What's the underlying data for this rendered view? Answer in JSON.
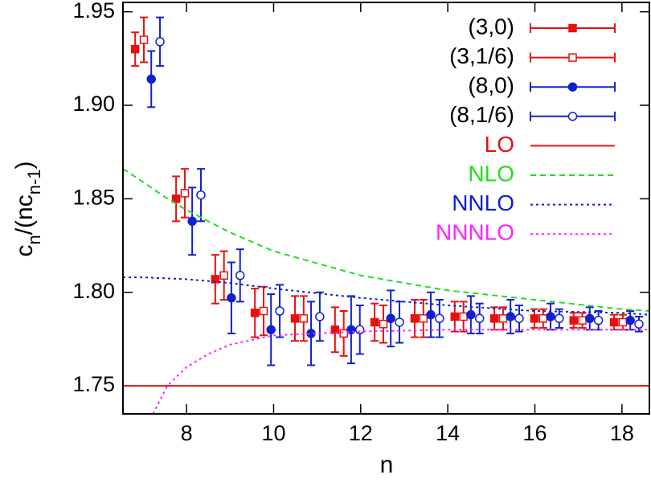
{
  "chart_data": {
    "type": "scatter",
    "xlabel": "n",
    "ylabel": [
      "c",
      "n",
      "/(nc",
      "n-1",
      ")"
    ],
    "xlim": [
      6.54,
      18.63
    ],
    "ylim": [
      1.735,
      1.955
    ],
    "xticks": [
      8,
      10,
      12,
      14,
      16,
      18
    ],
    "yticks": [
      1.75,
      {
        "value": 1.8,
        "label": "1.80"
      },
      1.85,
      {
        "value": 1.9,
        "label": "1.90"
      },
      1.95
    ],
    "legend": "upper right",
    "series": [
      {
        "name": "(3,0)",
        "color": "#e8100f",
        "marker": "square",
        "x": [
          6.82,
          7.76,
          8.66,
          9.57,
          10.49,
          11.41,
          12.32,
          13.24,
          14.16,
          15.07,
          15.99,
          16.89,
          17.82
        ],
        "values": [
          1.93,
          1.85,
          1.807,
          1.789,
          1.786,
          1.78,
          1.784,
          1.786,
          1.787,
          1.786,
          1.786,
          1.785,
          1.784
        ],
        "errors": [
          0.009,
          0.012,
          0.013,
          0.013,
          0.012,
          0.012,
          0.01,
          0.01,
          0.008,
          0.006,
          0.005,
          0.004,
          0.004
        ]
      },
      {
        "name": "(3,1/6)",
        "color": "#e8100f",
        "marker": "square-open",
        "x": [
          7.02,
          7.96,
          8.86,
          9.77,
          10.69,
          11.61,
          12.52,
          13.44,
          14.36,
          15.27,
          16.19,
          17.09,
          18.02
        ],
        "values": [
          1.935,
          1.853,
          1.809,
          1.79,
          1.786,
          1.778,
          1.783,
          1.786,
          1.787,
          1.786,
          1.786,
          1.785,
          1.784
        ],
        "errors": [
          0.012,
          0.013,
          0.013,
          0.013,
          0.012,
          0.012,
          0.01,
          0.01,
          0.008,
          0.006,
          0.005,
          0.004,
          0.004
        ]
      },
      {
        "name": "(8,0)",
        "color": "#1020d0",
        "marker": "circle",
        "x": [
          7.19,
          8.13,
          9.03,
          9.94,
          10.86,
          11.78,
          12.69,
          13.61,
          14.53,
          15.44,
          16.36,
          17.26,
          18.19
        ],
        "values": [
          1.914,
          1.838,
          1.797,
          1.78,
          1.778,
          1.78,
          1.786,
          1.788,
          1.788,
          1.787,
          1.787,
          1.786,
          1.785
        ],
        "errors": [
          0.015,
          0.018,
          0.019,
          0.019,
          0.017,
          0.018,
          0.015,
          0.012,
          0.01,
          0.009,
          0.007,
          0.006,
          0.005
        ]
      },
      {
        "name": "(8,1/6)",
        "color": "#1020d0",
        "marker": "circle-open",
        "x": [
          7.39,
          8.33,
          9.23,
          10.14,
          11.06,
          11.98,
          12.89,
          13.81,
          14.73,
          15.64,
          16.56,
          17.46,
          18.39
        ],
        "values": [
          1.934,
          1.852,
          1.809,
          1.79,
          1.787,
          1.78,
          1.784,
          1.786,
          1.786,
          1.786,
          1.786,
          1.785,
          1.783
        ],
        "errors": [
          0.013,
          0.014,
          0.014,
          0.014,
          0.013,
          0.013,
          0.011,
          0.01,
          0.008,
          0.007,
          0.005,
          0.005,
          0.004
        ]
      },
      {
        "name": "LO",
        "color": "#e8100f",
        "line": "solid",
        "x": [
          6.54,
          18.63
        ],
        "values": [
          1.75,
          1.75
        ]
      },
      {
        "name": "NLO",
        "color": "#22dd22",
        "line": "dashed",
        "x": [
          6.54,
          7,
          7.5,
          8,
          9,
          10,
          12,
          14,
          16,
          18,
          18.63
        ],
        "values": [
          1.866,
          1.859,
          1.851,
          1.844,
          1.832,
          1.822,
          1.809,
          1.801,
          1.796,
          1.791,
          1.79
        ]
      },
      {
        "name": "NNLO",
        "color": "#1020d0",
        "line": "dotted",
        "x": [
          6.54,
          7,
          8,
          9,
          10,
          12,
          14,
          16,
          18,
          18.63
        ],
        "values": [
          1.808,
          1.808,
          1.807,
          1.805,
          1.802,
          1.797,
          1.793,
          1.79,
          1.789,
          1.788
        ]
      },
      {
        "name": "NNNLO",
        "color": "#ff22ff",
        "line": "dotted",
        "x": [
          7.23,
          7.56,
          8,
          8.5,
          9,
          10,
          11,
          12,
          14,
          16,
          18,
          18.63
        ],
        "values": [
          1.735,
          1.75,
          1.76,
          1.767,
          1.772,
          1.777,
          1.778,
          1.779,
          1.78,
          1.78,
          1.78,
          1.78
        ]
      }
    ]
  }
}
